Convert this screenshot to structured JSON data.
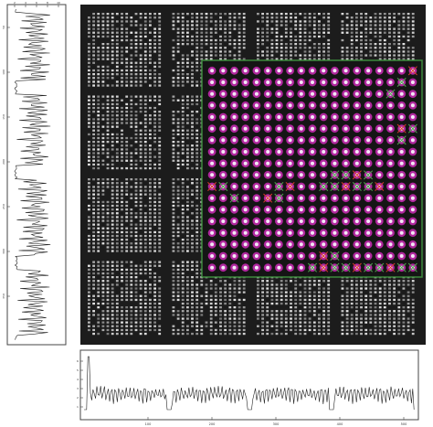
{
  "colors": {
    "background": "#ffffff",
    "array_background": "#1c1c1c",
    "spot": "#e6e6e6",
    "inset_background": "#151515",
    "inset_border": "#3c8a3c",
    "inset_spot_ring": "#b0279e",
    "inset_spot_core": "#f4e8f6",
    "flag_cross": "#4fa84f",
    "flag_red": "#d93a2b",
    "profile_line": "#222222",
    "axis": "#444444"
  },
  "left_profile": {
    "axis_ticks": [
      "2",
      "4",
      "6",
      "8",
      "10"
    ],
    "side_ticks": [
      "50",
      "100",
      "150",
      "200",
      "250",
      "300",
      "350"
    ]
  },
  "bottom_profile": {
    "axis_ticks": [
      "100",
      "200",
      "300",
      "400",
      "500"
    ],
    "side_ticks": [
      "1",
      "2",
      "3",
      "4",
      "5",
      "6"
    ]
  },
  "array": {
    "block_columns": 4,
    "block_rows": 4
  },
  "inset": {
    "spot_columns": 19,
    "spot_rows": 18,
    "flagged_spots": [
      [
        0,
        18
      ],
      [
        1,
        17
      ],
      [
        2,
        16
      ],
      [
        5,
        17
      ],
      [
        5,
        18
      ],
      [
        6,
        17
      ],
      [
        10,
        0
      ],
      [
        10,
        1
      ],
      [
        10,
        6
      ],
      [
        10,
        7
      ],
      [
        10,
        10
      ],
      [
        10,
        11
      ],
      [
        10,
        12
      ],
      [
        10,
        13
      ],
      [
        10,
        14
      ],
      [
        10,
        15
      ],
      [
        9,
        11
      ],
      [
        9,
        12
      ],
      [
        9,
        13
      ],
      [
        9,
        14
      ],
      [
        11,
        2
      ],
      [
        11,
        5
      ],
      [
        11,
        6
      ],
      [
        17,
        9
      ],
      [
        17,
        10
      ],
      [
        17,
        11
      ],
      [
        17,
        12
      ],
      [
        17,
        13
      ],
      [
        17,
        14
      ],
      [
        17,
        15
      ],
      [
        17,
        16
      ],
      [
        17,
        17
      ],
      [
        17,
        18
      ],
      [
        16,
        10
      ],
      [
        16,
        11
      ]
    ]
  }
}
